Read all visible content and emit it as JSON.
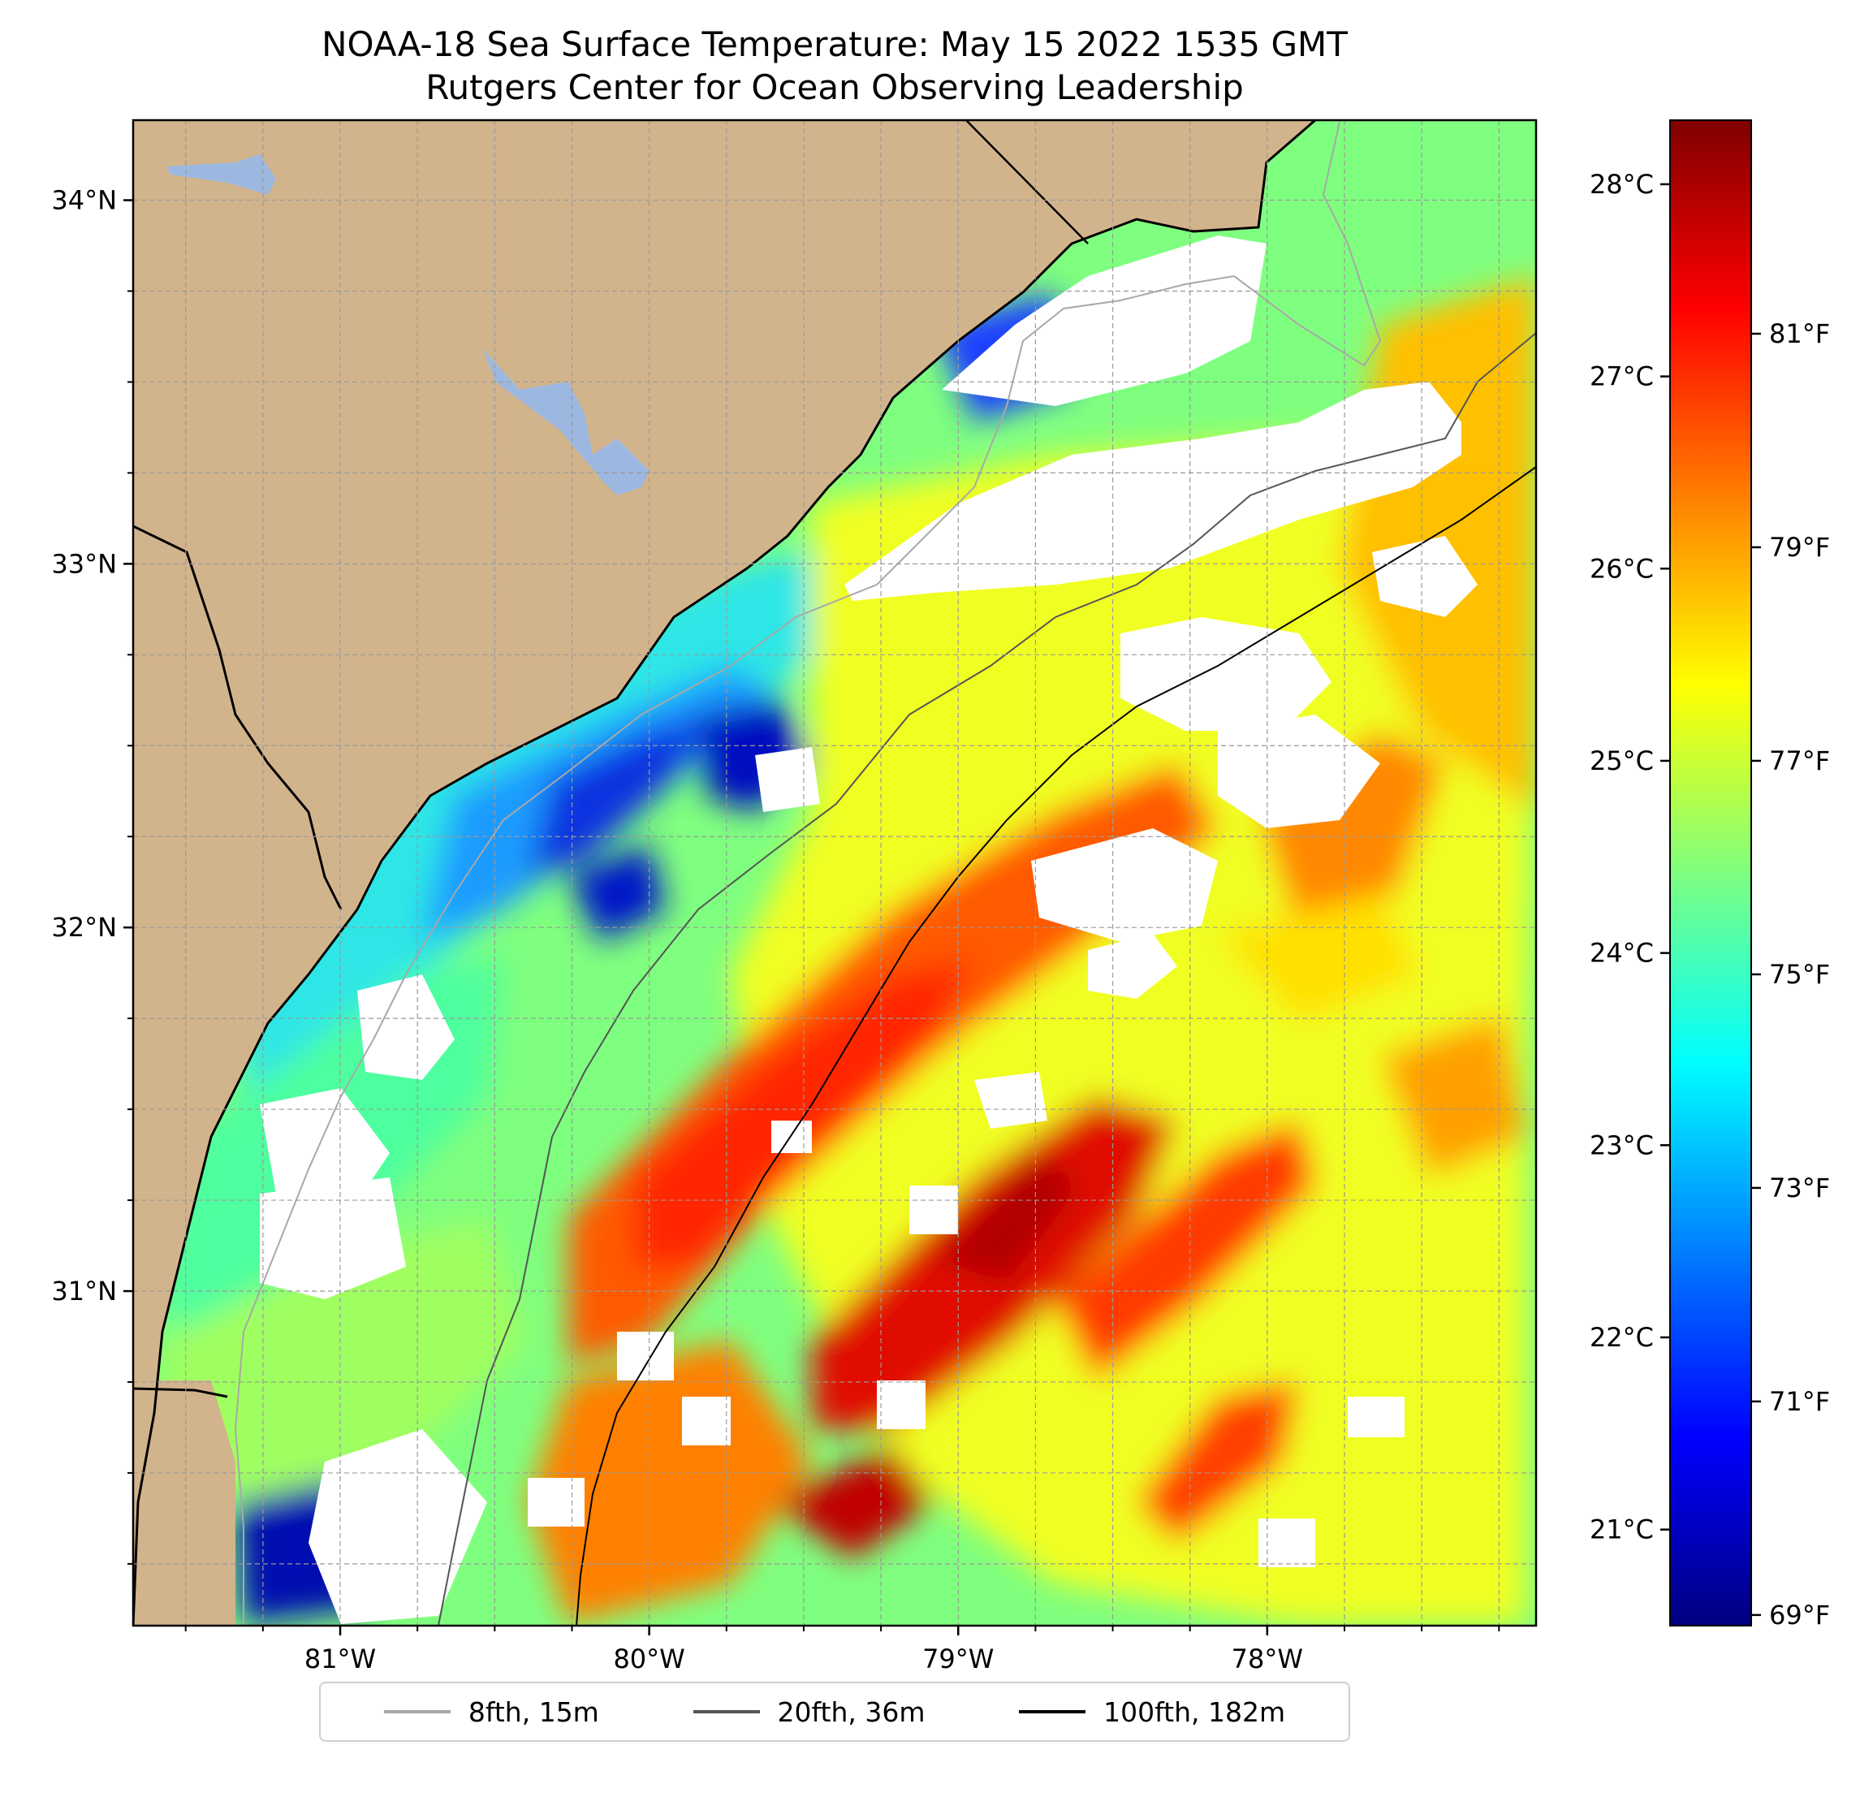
{
  "title": {
    "line1": "NOAA-18 Sea Surface Temperature: May 15 2022 1535 GMT",
    "line2": "Rutgers Center for Ocean Observing Leadership"
  },
  "map": {
    "lon_range": [
      -81.67,
      -77.13
    ],
    "lat_range": [
      30.08,
      34.22
    ],
    "lat_ticks": [
      {
        "value": 34,
        "label": "34°N"
      },
      {
        "value": 33,
        "label": "33°N"
      },
      {
        "value": 32,
        "label": "32°N"
      },
      {
        "value": 31,
        "label": "31°N"
      }
    ],
    "lon_ticks": [
      {
        "value": -81,
        "label": "81°W"
      },
      {
        "value": -80,
        "label": "80°W"
      },
      {
        "value": -79,
        "label": "79°W"
      },
      {
        "value": -78,
        "label": "78°W"
      }
    ]
  },
  "colorbar": {
    "celsius_ticks": [
      {
        "value": 28,
        "label": "28°C"
      },
      {
        "value": 27,
        "label": "27°C"
      },
      {
        "value": 26,
        "label": "26°C"
      },
      {
        "value": 25,
        "label": "25°C"
      },
      {
        "value": 24,
        "label": "24°C"
      },
      {
        "value": 23,
        "label": "23°C"
      },
      {
        "value": 22,
        "label": "22°C"
      },
      {
        "value": 21,
        "label": "21°C"
      }
    ],
    "fahrenheit_ticks": [
      {
        "value": 81,
        "label": "81°F"
      },
      {
        "value": 79,
        "label": "79°F"
      },
      {
        "value": 77,
        "label": "77°F"
      },
      {
        "value": 75,
        "label": "75°F"
      },
      {
        "value": 73,
        "label": "73°F"
      },
      {
        "value": 71,
        "label": "71°F"
      },
      {
        "value": 69,
        "label": "69°F"
      }
    ],
    "range_f": [
      68.9,
      83.0
    ],
    "colormap": [
      "#00007f",
      "#0000ff",
      "#007fff",
      "#00ffff",
      "#7fff7f",
      "#ffff00",
      "#ff7f00",
      "#ff0000",
      "#7f0000"
    ]
  },
  "legend": [
    {
      "label": "8fth, 15m",
      "color": "#a8a8a8"
    },
    {
      "label": "20fth, 36m",
      "color": "#555555"
    },
    {
      "label": "100fth, 182m",
      "color": "#000000"
    }
  ],
  "colors": {
    "land": "#d2b48c",
    "lake": "#9db8e0",
    "cloud": "#ffffff"
  }
}
